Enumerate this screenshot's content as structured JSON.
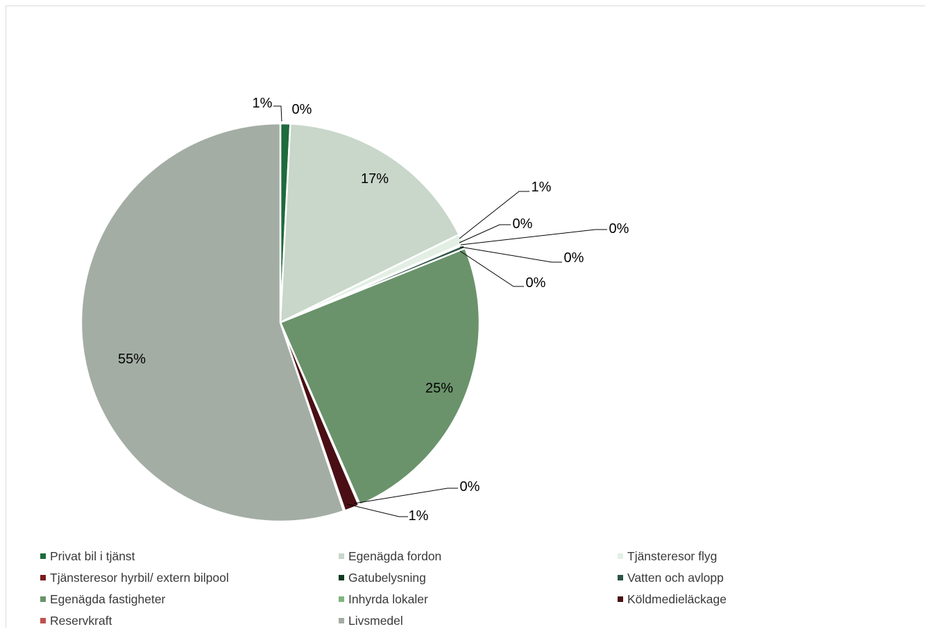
{
  "chart_data": {
    "type": "pie",
    "slices": [
      {
        "label": "Privat bil i tjänst",
        "value": 0.8,
        "data_label": "1%",
        "color": "#1e6b3c"
      },
      {
        "label": "Egenägda fordon",
        "value": 16.9,
        "data_label": "17%",
        "color": "#c9d6ca"
      },
      {
        "label": "Tjänsteresor flyg",
        "value": 0.8,
        "data_label": "1%",
        "color": "#e3efe4"
      },
      {
        "label": "Tjänsteresor hyrbil/ extern bilpool",
        "value": 0.05,
        "data_label": "0%",
        "color": "#7a1c1c"
      },
      {
        "label": "Gatubelysning",
        "value": 0.05,
        "data_label": "0%",
        "color": "#0f3a1f"
      },
      {
        "label": "Vatten och avlopp",
        "value": 0.3,
        "data_label": "0%",
        "color": "#2c5446"
      },
      {
        "label": "Egenägda fastigheter",
        "value": 24.5,
        "data_label": "25%",
        "color": "#6a936b"
      },
      {
        "label": "Inhyrda lokaler",
        "value": 0.1,
        "data_label": "0%",
        "color": "#7fb57f"
      },
      {
        "label": "Köldmedieläckage",
        "value": 1.2,
        "data_label": "1%",
        "color": "#4a0f14"
      },
      {
        "label": "Reservkraft",
        "value": 0.1,
        "data_label": "0%",
        "color": "#c0504d"
      },
      {
        "label": "Livsmedel",
        "value": 55.1,
        "data_label": "55%",
        "color": "#a3ada4"
      }
    ],
    "extra_labels": [
      {
        "text": "0%"
      }
    ],
    "legend_position": "bottom"
  }
}
